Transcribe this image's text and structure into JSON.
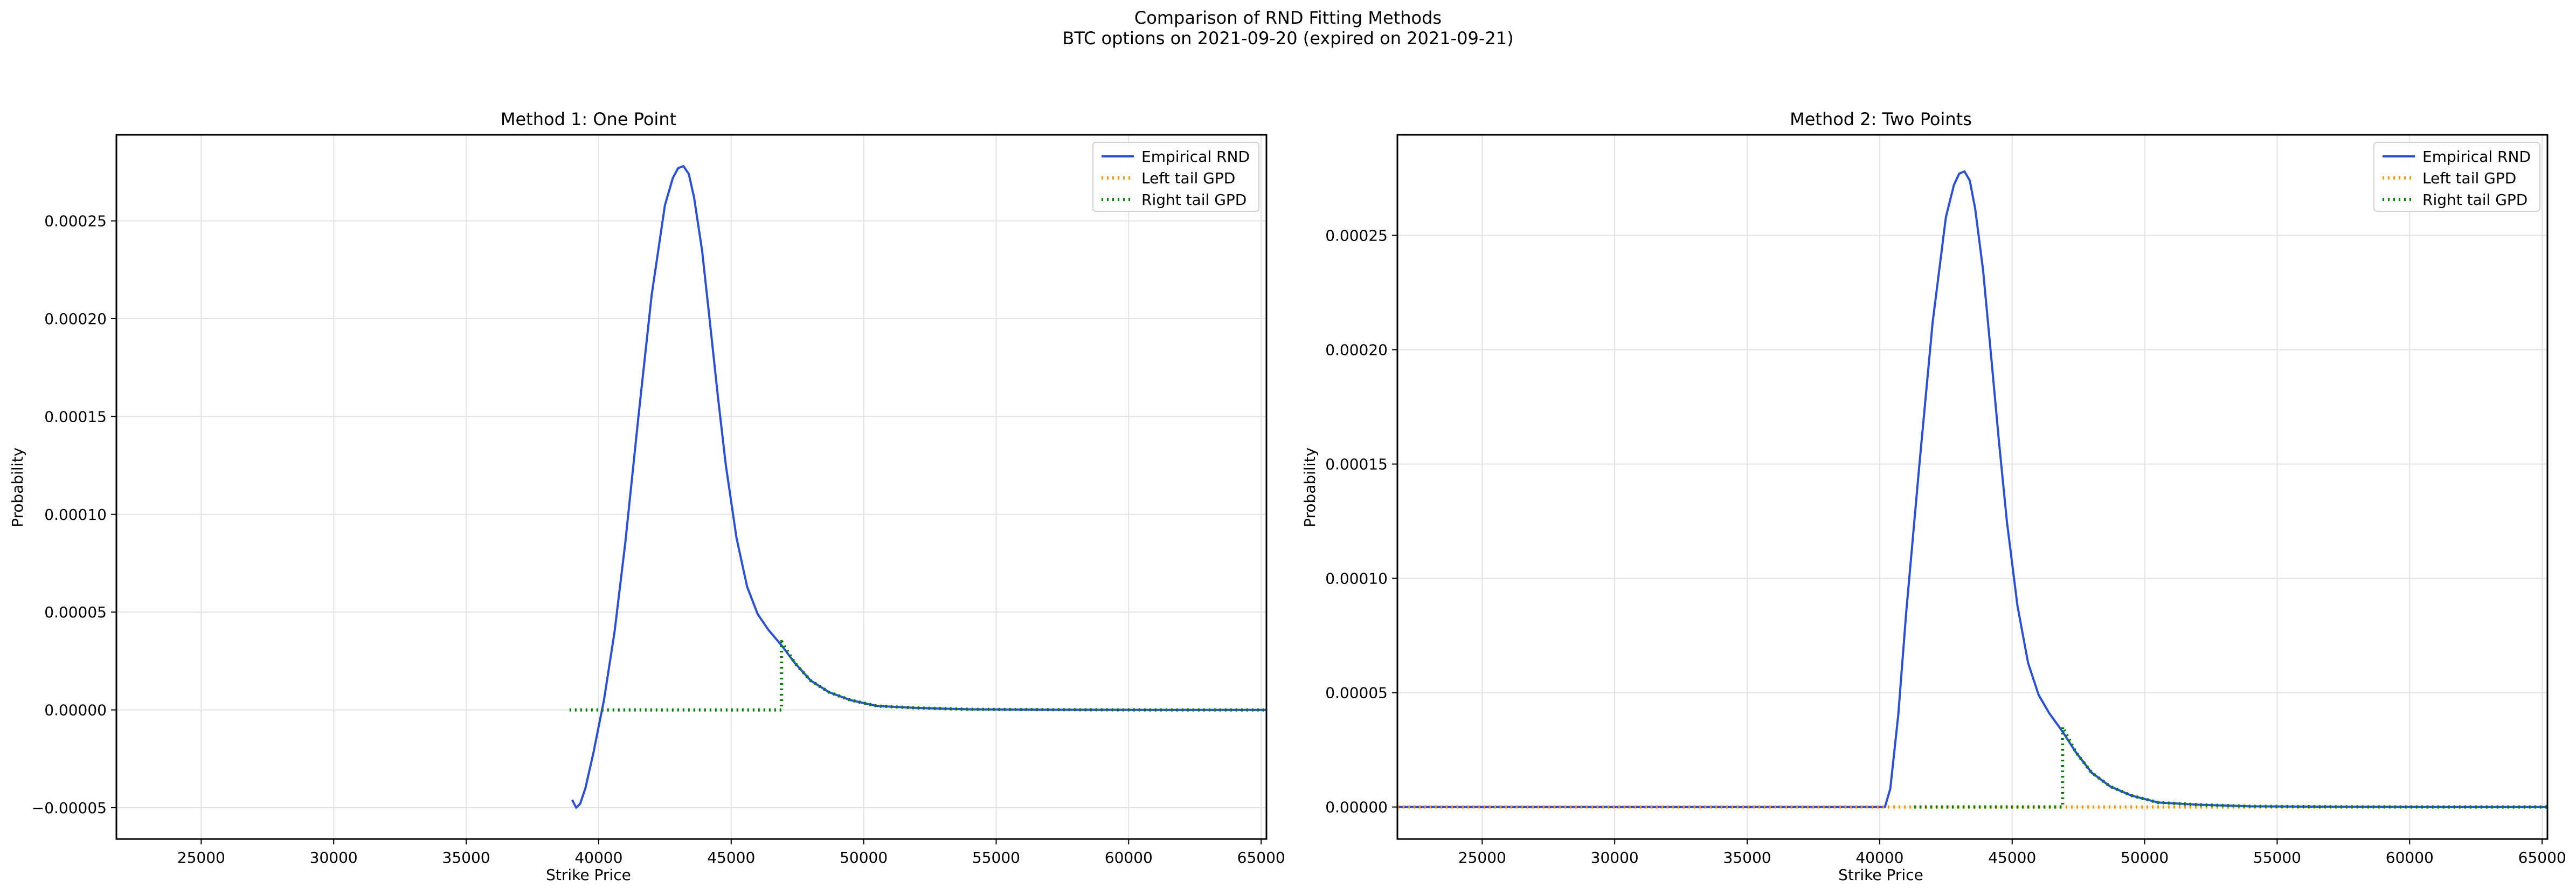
{
  "figure": {
    "title": "Comparison of RND Fitting Methods",
    "subtitle": "BTC options on 2021-09-20 (expired on 2021-09-21)"
  },
  "colors": {
    "empirical": "#2b50d8",
    "left_tail": "#ff9900",
    "right_tail": "#008000",
    "grid": "#e3e3e3",
    "axes": "#000000"
  },
  "chart_data": [
    {
      "type": "line",
      "title": "Method 1: One Point",
      "xlabel": "Strike Price",
      "ylabel": "Probability",
      "xlim": [
        21800,
        65200
      ],
      "ylim": [
        -6.6e-05,
        0.000294
      ],
      "xticks": [
        25000,
        30000,
        35000,
        40000,
        45000,
        50000,
        55000,
        60000,
        65000
      ],
      "yticks": [
        -5e-05,
        0.0,
        5e-05,
        0.0001,
        0.00015,
        0.0002,
        0.00025
      ],
      "ytick_labels": [
        "−0.00005",
        "0.00000",
        "0.00005",
        "0.00010",
        "0.00015",
        "0.00020",
        "0.00025"
      ],
      "grid": true,
      "legend_position": "top-right",
      "series": [
        {
          "name": "Empirical RND",
          "style": "solid",
          "color_key": "empirical",
          "x": [
            39000,
            39150,
            39300,
            39500,
            39800,
            40200,
            40600,
            41000,
            41500,
            42000,
            42500,
            42800,
            43000,
            43200,
            43400,
            43600,
            43900,
            44200,
            44500,
            44800,
            45200,
            45600,
            46000,
            46400,
            46900,
            47400,
            48000,
            48700,
            49500,
            50500,
            52000,
            54000,
            57000,
            61000,
            65200
          ],
          "y": [
            -4.6e-05,
            -5e-05,
            -4.8e-05,
            -4e-05,
            -2.2e-05,
            5e-06,
            4e-05,
            8.5e-05,
            0.00015,
            0.000212,
            0.000258,
            0.000272,
            0.000277,
            0.000278,
            0.000274,
            0.000262,
            0.000235,
            0.000198,
            0.00016,
            0.000125,
            8.8e-05,
            6.3e-05,
            4.9e-05,
            4.1e-05,
            3.3e-05,
            2.4e-05,
            1.5e-05,
            9e-06,
            5e-06,
            2e-06,
            1e-06,
            3e-07,
            1e-07,
            0.0,
            0.0
          ]
        },
        {
          "name": "Left tail GPD",
          "style": "dotted",
          "color_key": "left_tail",
          "x": [],
          "y": []
        },
        {
          "name": "Right tail GPD",
          "style": "dotted",
          "color_key": "right_tail",
          "x": [
            38900,
            46900,
            46900,
            47400,
            48000,
            48700,
            49500,
            50500,
            52000,
            54000,
            57000,
            61000,
            65200
          ],
          "y": [
            0.0,
            0.0,
            3.5e-05,
            2.4e-05,
            1.5e-05,
            9e-06,
            5e-06,
            2e-06,
            1e-06,
            3e-07,
            1e-07,
            0.0,
            0.0
          ]
        }
      ]
    },
    {
      "type": "line",
      "title": "Method 2: Two Points",
      "xlabel": "Strike Price",
      "ylabel": "Probability",
      "xlim": [
        21800,
        65200
      ],
      "ylim": [
        -1.4e-05,
        0.000294
      ],
      "xticks": [
        25000,
        30000,
        35000,
        40000,
        45000,
        50000,
        55000,
        60000,
        65000
      ],
      "yticks": [
        0.0,
        5e-05,
        0.0001,
        0.00015,
        0.0002,
        0.00025
      ],
      "ytick_labels": [
        "0.00000",
        "0.00005",
        "0.00010",
        "0.00015",
        "0.00020",
        "0.00025"
      ],
      "grid": true,
      "legend_position": "top-right",
      "series": [
        {
          "name": "Empirical RND",
          "style": "solid",
          "color_key": "empirical",
          "x": [
            21800,
            40200,
            40400,
            40700,
            41000,
            41500,
            42000,
            42500,
            42800,
            43000,
            43200,
            43400,
            43600,
            43900,
            44200,
            44500,
            44800,
            45200,
            45600,
            46000,
            46400,
            46900,
            47400,
            48000,
            48700,
            49500,
            50500,
            52000,
            54000,
            57000,
            61000,
            65200
          ],
          "y": [
            0.0,
            0.0,
            8e-06,
            4e-05,
            8.5e-05,
            0.00015,
            0.000212,
            0.000258,
            0.000272,
            0.000277,
            0.000278,
            0.000274,
            0.000262,
            0.000235,
            0.000198,
            0.00016,
            0.000125,
            8.8e-05,
            6.3e-05,
            4.9e-05,
            4.1e-05,
            3.3e-05,
            2.4e-05,
            1.5e-05,
            9e-06,
            5e-06,
            2e-06,
            1e-06,
            3e-07,
            1e-07,
            0.0,
            0.0
          ]
        },
        {
          "name": "Left tail GPD",
          "style": "dotted",
          "color_key": "left_tail",
          "x": [
            21800,
            65200
          ],
          "y": [
            0.0,
            0.0
          ]
        },
        {
          "name": "Right tail GPD",
          "style": "dotted",
          "color_key": "right_tail",
          "x": [
            41300,
            46900,
            46900,
            47400,
            48000,
            48700,
            49500,
            50500,
            52000,
            54000,
            57000,
            61000,
            65200
          ],
          "y": [
            0.0,
            0.0,
            3.5e-05,
            2.4e-05,
            1.5e-05,
            9e-06,
            5e-06,
            2e-06,
            1e-06,
            3e-07,
            1e-07,
            0.0,
            0.0
          ]
        }
      ]
    }
  ]
}
